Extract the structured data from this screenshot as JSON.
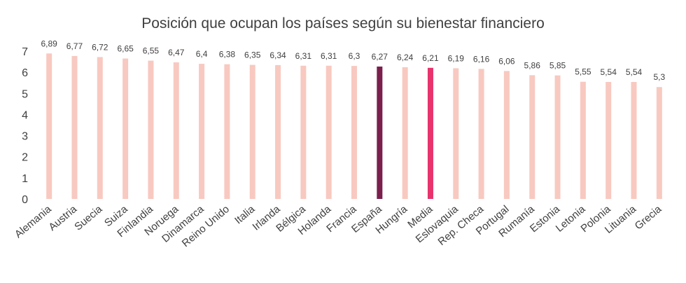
{
  "chart_data": {
    "type": "bar",
    "title": "Posición que ocupan los países según su bienestar financiero",
    "xlabel": "",
    "ylabel": "",
    "ylim": [
      0,
      7
    ],
    "yticks": [
      "0",
      "1",
      "2",
      "3",
      "4",
      "5",
      "6",
      "7"
    ],
    "grid": false,
    "legend": "none",
    "categories": [
      "Alemania",
      "Austria",
      "Suecia",
      "Suiza",
      "Finlandia",
      "Noruega",
      "Dinamarca",
      "Reino Unido",
      "Italia",
      "Irlanda",
      "Bélgica",
      "Holanda",
      "Francia",
      "España",
      "Hungría",
      "Media",
      "Eslovaquia",
      "Rep. Checa",
      "Portugal",
      "Rumanía",
      "Estonia",
      "Letonia",
      "Polonia",
      "Lituania",
      "Grecia"
    ],
    "values": [
      6.89,
      6.77,
      6.72,
      6.65,
      6.55,
      6.47,
      6.4,
      6.38,
      6.35,
      6.34,
      6.31,
      6.31,
      6.3,
      6.27,
      6.24,
      6.21,
      6.19,
      6.16,
      6.06,
      5.86,
      5.85,
      5.55,
      5.54,
      5.54,
      5.3
    ],
    "value_labels": [
      "6,89",
      "6,77",
      "6,72",
      "6,65",
      "6,55",
      "6,47",
      "6,4",
      "6,38",
      "6,35",
      "6,34",
      "6,31",
      "6,31",
      "6,3",
      "6,27",
      "6,24",
      "6,21",
      "6,19",
      "6,16",
      "6,06",
      "5,86",
      "5,85",
      "5,55",
      "5,54",
      "5,54",
      "5,3"
    ],
    "colors": {
      "default": "#f8c9c0",
      "highlights": {
        "España": "#7b1f4d",
        "Media": "#e8336d"
      }
    }
  }
}
